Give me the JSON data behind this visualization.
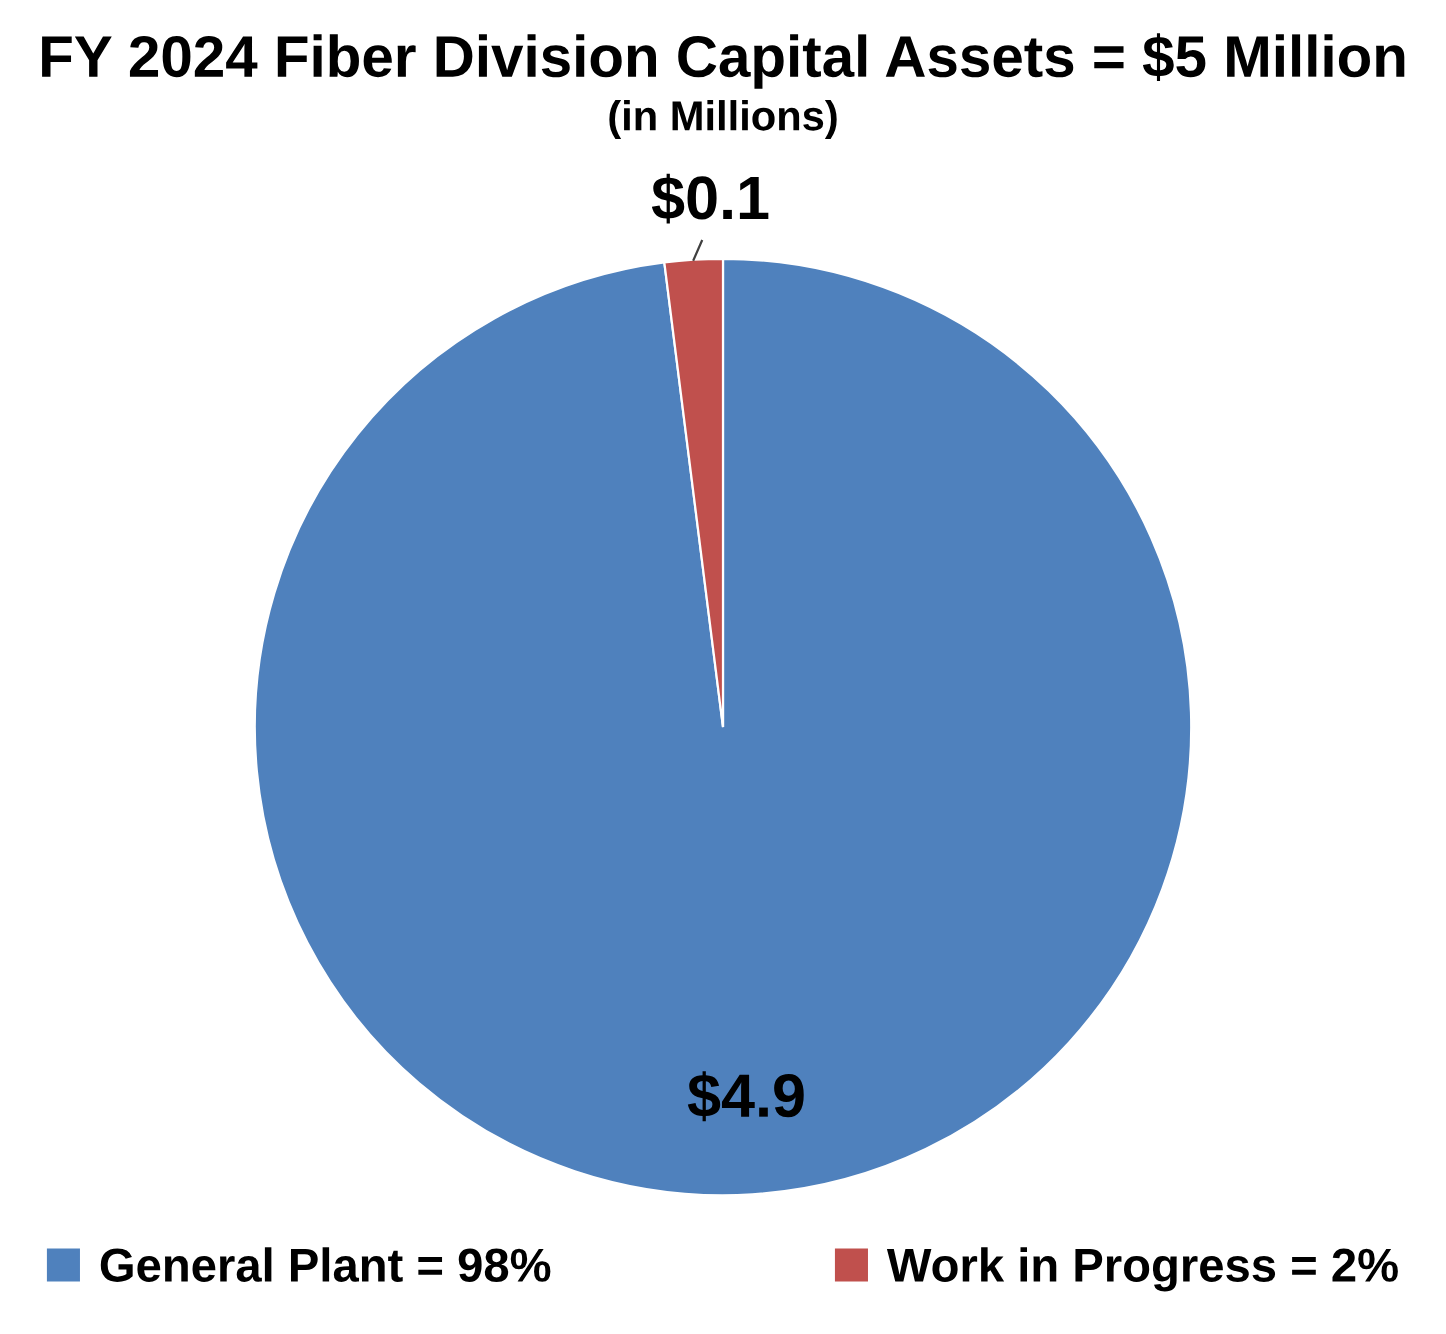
{
  "chart_data": {
    "type": "pie",
    "title": "FY 2024 Fiber Division Capital Assets = $5 Million",
    "subtitle": "(in Millions)",
    "categories": [
      "General Plant = 98%",
      "Work in Progress = 2%"
    ],
    "values": [
      4.9,
      0.1
    ],
    "colors": [
      "#4f81bd",
      "#c0504d"
    ],
    "value_labels": [
      "$4.9",
      "$0.1"
    ],
    "legend": "bottom"
  }
}
